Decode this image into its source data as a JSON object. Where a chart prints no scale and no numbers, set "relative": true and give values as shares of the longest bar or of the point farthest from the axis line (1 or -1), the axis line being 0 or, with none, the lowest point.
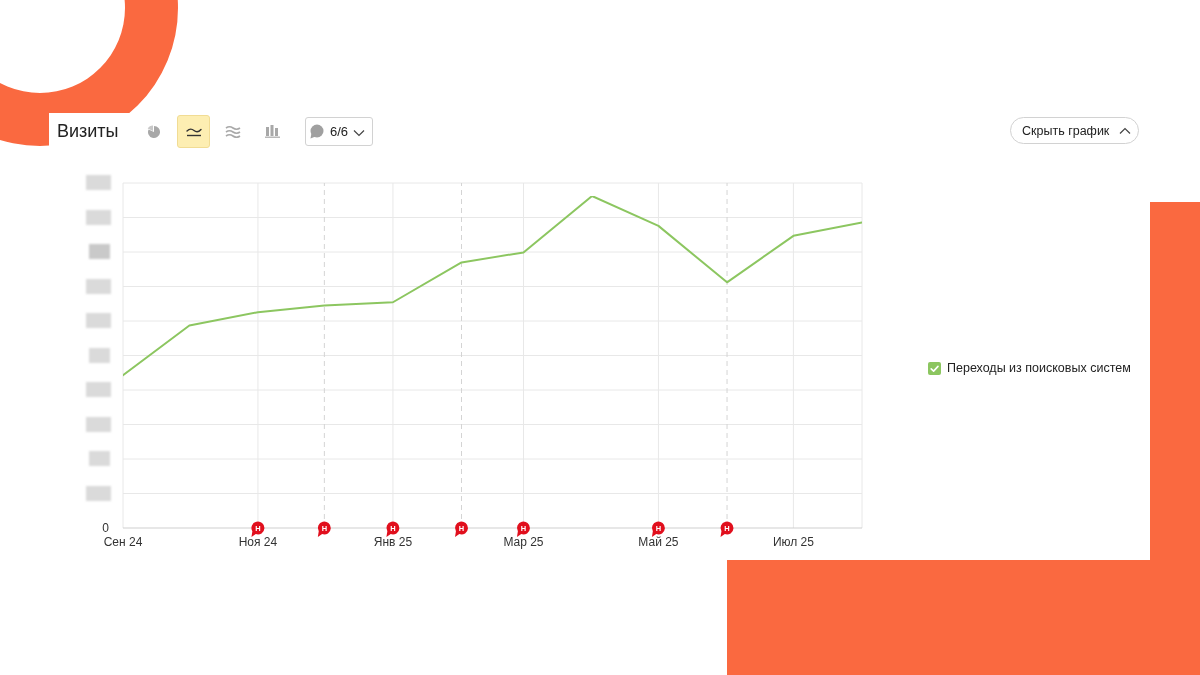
{
  "chart_data": {
    "type": "line",
    "title": "Визиты",
    "x": [
      "2024-09",
      "2024-10",
      "2024-11",
      "2024-12",
      "2025-01",
      "2025-02",
      "2025-03",
      "2025-04",
      "2025-05",
      "2025-06",
      "2025-07",
      "2025-08"
    ],
    "xlim": [
      "2024-09",
      "2025-08"
    ],
    "xticks": [
      {
        "value": "2024-09",
        "label": "Сен 24"
      },
      {
        "value": "2024-11",
        "label": "Ноя 24"
      },
      {
        "value": "2025-01",
        "label": "Янв 25"
      },
      {
        "value": "2025-03",
        "label": "Мар 25"
      },
      {
        "value": "2025-05",
        "label": "Май 25"
      },
      {
        "value": "2025-07",
        "label": "Июл 25"
      }
    ],
    "series": [
      {
        "name": "Переходы из поисковых систем",
        "color": "#8cc660",
        "values": [
          0.46,
          0.61,
          0.65,
          0.67,
          0.68,
          0.8,
          0.83,
          1,
          0.91,
          0.74,
          0.88,
          0.92
        ]
      }
    ],
    "relative": true,
    "grid": true,
    "legend": "right",
    "ref_lines": [
      {
        "axis": "x",
        "value": "2024-12",
        "line_style": "dashed",
        "color": "#d4d4d4"
      },
      {
        "axis": "x",
        "value": "2025-02",
        "line_style": "dashed",
        "color": "#d4d4d4"
      },
      {
        "axis": "x",
        "value": "2025-06",
        "line_style": "dashed",
        "color": "#d4d4d4"
      }
    ],
    "annotations": [
      "6/6",
      "Скрыть график",
      "0",
      {
        "text": "Н",
        "x": "2024-11",
        "y": 0
      },
      {
        "text": "Н",
        "x": "2024-12",
        "y": 0
      },
      {
        "text": "Н",
        "x": "2025-01",
        "y": 0
      },
      {
        "text": "Н",
        "x": "2025-02",
        "y": 0
      },
      {
        "text": "Н",
        "x": "2025-03",
        "y": 0
      },
      {
        "text": "Н",
        "x": "2025-05",
        "y": 0
      },
      {
        "text": "Н",
        "x": "2025-06",
        "y": 0
      }
    ]
  }
}
